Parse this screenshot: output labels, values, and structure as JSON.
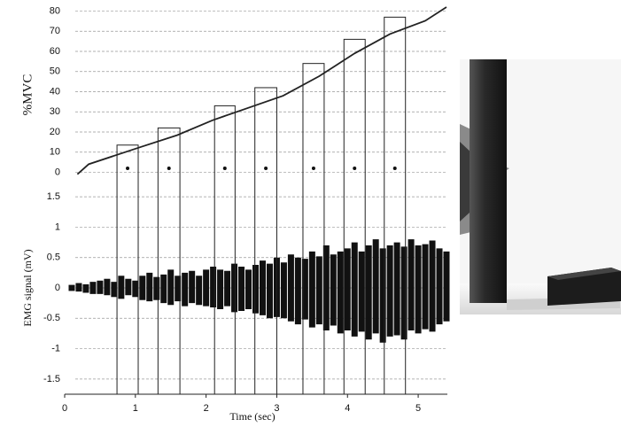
{
  "chart_data": [
    {
      "type": "line",
      "ylabel": "%MVC",
      "ylim": [
        -2,
        82
      ],
      "yticks": [
        0,
        10,
        20,
        30,
        40,
        50,
        60,
        70,
        80
      ],
      "grid": true,
      "xlim": [
        0,
        5.4
      ],
      "x": [
        0.18,
        0.34,
        0.71,
        1.09,
        1.59,
        2.09,
        2.59,
        3.09,
        3.6,
        4.1,
        4.6,
        5.1,
        5.4
      ],
      "values": [
        -1,
        4,
        8.3,
        12.7,
        18.4,
        25.8,
        31.9,
        38,
        47.7,
        59,
        68.6,
        75.2,
        82
      ],
      "color": "#222",
      "boxes": {
        "x_start": [
          0.74,
          1.32,
          2.12,
          2.69,
          3.37,
          3.95,
          4.52
        ],
        "x_end": [
          1.04,
          1.63,
          2.41,
          3.0,
          3.67,
          4.25,
          4.82
        ],
        "values": [
          13.5,
          22,
          33,
          42,
          54,
          66,
          77
        ]
      }
    },
    {
      "type": "signal",
      "ylabel": "EMG signal (mV)",
      "xlabel": "Time (sec)",
      "ylim": [
        -1.75,
        1.75
      ],
      "yticks": [
        1.5,
        1,
        0.5,
        0,
        -0.5,
        -1,
        -1.5
      ],
      "grid": true,
      "xlim": [
        0,
        5.4
      ],
      "xticks": [
        0,
        1,
        2,
        3,
        4,
        5
      ],
      "color": "#111",
      "x": [
        0.1,
        0.2,
        0.3,
        0.4,
        0.5,
        0.6,
        0.7,
        0.8,
        0.9,
        1.0,
        1.1,
        1.2,
        1.3,
        1.4,
        1.5,
        1.6,
        1.7,
        1.8,
        1.9,
        2.0,
        2.1,
        2.2,
        2.3,
        2.4,
        2.5,
        2.6,
        2.7,
        2.8,
        2.9,
        3.0,
        3.1,
        3.2,
        3.3,
        3.4,
        3.5,
        3.6,
        3.7,
        3.8,
        3.9,
        4.0,
        4.1,
        4.2,
        4.3,
        4.4,
        4.5,
        4.6,
        4.7,
        4.8,
        4.9,
        5.0,
        5.1,
        5.2,
        5.3,
        5.4
      ],
      "max": [
        0.05,
        0.08,
        0.06,
        0.1,
        0.12,
        0.15,
        0.1,
        0.2,
        0.15,
        0.12,
        0.2,
        0.25,
        0.18,
        0.22,
        0.3,
        0.2,
        0.25,
        0.28,
        0.2,
        0.3,
        0.35,
        0.3,
        0.28,
        0.4,
        0.35,
        0.3,
        0.38,
        0.45,
        0.4,
        0.5,
        0.42,
        0.55,
        0.5,
        0.48,
        0.6,
        0.52,
        0.7,
        0.55,
        0.6,
        0.65,
        0.75,
        0.6,
        0.7,
        0.8,
        0.65,
        0.7,
        0.75,
        0.68,
        0.8,
        0.7,
        0.72,
        0.78,
        0.65,
        0.6
      ],
      "min": [
        -0.05,
        -0.06,
        -0.08,
        -0.1,
        -0.1,
        -0.12,
        -0.15,
        -0.18,
        -0.12,
        -0.15,
        -0.2,
        -0.22,
        -0.2,
        -0.25,
        -0.28,
        -0.22,
        -0.3,
        -0.25,
        -0.28,
        -0.3,
        -0.32,
        -0.35,
        -0.3,
        -0.4,
        -0.38,
        -0.35,
        -0.42,
        -0.45,
        -0.5,
        -0.48,
        -0.5,
        -0.55,
        -0.6,
        -0.52,
        -0.65,
        -0.6,
        -0.7,
        -0.62,
        -0.75,
        -0.7,
        -0.8,
        -0.72,
        -0.85,
        -0.75,
        -0.9,
        -0.8,
        -0.78,
        -0.85,
        -0.7,
        -0.75,
        -0.68,
        -0.72,
        -0.6,
        -0.55
      ]
    }
  ]
}
